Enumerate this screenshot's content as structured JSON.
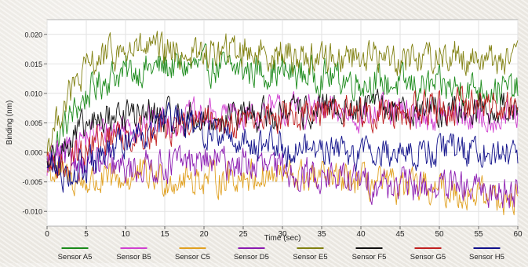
{
  "chart_data": {
    "type": "line",
    "xlabel": "Time (sec)",
    "ylabel": "Binding (nm)",
    "xlim": [
      0,
      60
    ],
    "ylim": [
      -0.0125,
      0.0225
    ],
    "xticks": [
      0,
      5,
      10,
      15,
      20,
      25,
      30,
      35,
      40,
      45,
      50,
      55,
      60
    ],
    "xtick_labels": [
      "0",
      "5",
      "10",
      "15",
      "20",
      "25",
      "30",
      "35",
      "40",
      "45",
      "50",
      "55",
      "60"
    ],
    "yticks": [
      -0.01,
      -0.005,
      0.0,
      0.005,
      0.01,
      0.015,
      0.02
    ],
    "ytick_labels": [
      "-0.010",
      "-0.005",
      "0.000",
      "0.005",
      "0.010",
      "0.015",
      "0.020"
    ],
    "grid": true,
    "legend_position": "bottom",
    "series": [
      {
        "name": "Sensor A5",
        "color": "#1a8a1a",
        "x": [
          0,
          2,
          4,
          6,
          8,
          10,
          12,
          15,
          20,
          25,
          30,
          35,
          40,
          45,
          50,
          55,
          60
        ],
        "y": [
          -0.002,
          0.004,
          0.008,
          0.011,
          0.013,
          0.0135,
          0.014,
          0.0145,
          0.0145,
          0.014,
          0.0135,
          0.013,
          0.012,
          0.0115,
          0.011,
          0.011,
          0.0105
        ]
      },
      {
        "name": "Sensor B5",
        "color": "#d040d0",
        "x": [
          0,
          2,
          4,
          6,
          8,
          10,
          12,
          15,
          20,
          25,
          30,
          35,
          40,
          45,
          50,
          55,
          60
        ],
        "y": [
          -0.002,
          0.0,
          0.002,
          0.003,
          0.004,
          0.0045,
          0.005,
          0.0055,
          0.006,
          0.0065,
          0.007,
          0.007,
          0.0065,
          0.0065,
          0.006,
          0.006,
          0.006
        ]
      },
      {
        "name": "Sensor C5",
        "color": "#e0a020",
        "x": [
          0,
          2,
          4,
          6,
          8,
          10,
          12,
          15,
          20,
          25,
          30,
          35,
          40,
          45,
          50,
          55,
          60
        ],
        "y": [
          -0.003,
          -0.004,
          -0.005,
          -0.005,
          -0.005,
          -0.0045,
          -0.004,
          -0.0045,
          -0.0045,
          -0.004,
          -0.004,
          -0.0045,
          -0.005,
          -0.006,
          -0.0065,
          -0.007,
          -0.008
        ]
      },
      {
        "name": "Sensor D5",
        "color": "#8a1ab0",
        "x": [
          0,
          2,
          4,
          6,
          8,
          10,
          12,
          15,
          20,
          25,
          30,
          35,
          40,
          45,
          50,
          55,
          60
        ],
        "y": [
          -0.002,
          -0.001,
          -0.0015,
          -0.002,
          -0.0025,
          -0.003,
          -0.0025,
          -0.002,
          -0.0015,
          -0.002,
          -0.003,
          -0.004,
          -0.005,
          -0.0055,
          -0.006,
          -0.0065,
          -0.0065
        ]
      },
      {
        "name": "Sensor E5",
        "color": "#808010",
        "x": [
          0,
          2,
          4,
          6,
          8,
          10,
          12,
          15,
          20,
          25,
          30,
          35,
          40,
          45,
          50,
          55,
          60
        ],
        "y": [
          0.001,
          0.008,
          0.012,
          0.0155,
          0.0165,
          0.017,
          0.0175,
          0.017,
          0.0165,
          0.0175,
          0.0165,
          0.016,
          0.0165,
          0.016,
          0.0165,
          0.016,
          0.0155
        ]
      },
      {
        "name": "Sensor F5",
        "color": "#101010",
        "x": [
          0,
          2,
          4,
          6,
          8,
          10,
          12,
          15,
          20,
          25,
          30,
          35,
          40,
          45,
          50,
          55,
          60
        ],
        "y": [
          -0.002,
          0.0005,
          0.003,
          0.005,
          0.006,
          0.0065,
          0.0065,
          0.006,
          0.0055,
          0.006,
          0.0065,
          0.007,
          0.0075,
          0.0075,
          0.007,
          0.0075,
          0.0075
        ]
      },
      {
        "name": "Sensor G5",
        "color": "#c02020",
        "x": [
          0,
          2,
          4,
          6,
          8,
          10,
          12,
          15,
          20,
          25,
          30,
          35,
          40,
          45,
          50,
          55,
          60
        ],
        "y": [
          -0.003,
          -0.002,
          0.0,
          0.0015,
          0.0025,
          0.003,
          0.0035,
          0.004,
          0.005,
          0.0055,
          0.006,
          0.0065,
          0.007,
          0.007,
          0.0075,
          0.008,
          0.008
        ]
      },
      {
        "name": "Sensor H5",
        "color": "#10108a",
        "x": [
          0,
          2,
          4,
          6,
          8,
          10,
          12,
          15,
          20,
          25,
          30,
          35,
          40,
          45,
          50,
          55,
          60
        ],
        "y": [
          -0.002,
          -0.0035,
          -0.003,
          -0.002,
          0.0,
          0.002,
          0.004,
          0.005,
          0.004,
          0.002,
          0.001,
          0.0005,
          0.0,
          0.0,
          0.0005,
          0.0005,
          0.0
        ]
      }
    ]
  }
}
